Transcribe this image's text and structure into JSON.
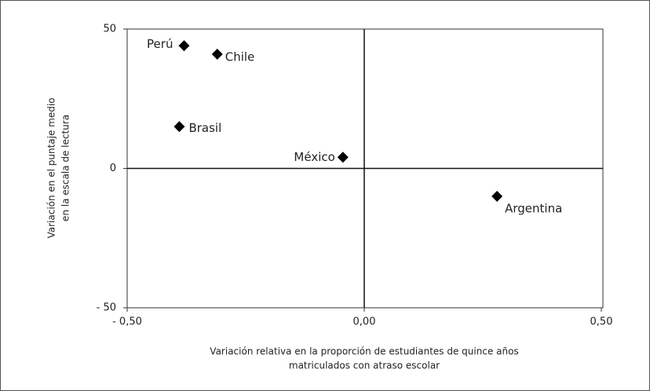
{
  "chart_data": {
    "type": "scatter",
    "x_label": [
      "Variación relativa en la proporción de estudiantes de quince años",
      "matriculados con atraso escolar"
    ],
    "y_label": [
      "Variación en el puntaje medio",
      "en la escala de lectura"
    ],
    "series": [
      {
        "name": null,
        "color": "#000000",
        "labels": [
          "Perú",
          "Chile",
          "Brasil",
          "México",
          "Argentina"
        ],
        "x": [
          -0.38,
          -0.31,
          -0.39,
          -0.045,
          0.28
        ],
        "values": [
          44,
          41,
          15,
          4,
          -10
        ]
      }
    ],
    "xlim": [
      -0.5,
      0.5
    ],
    "ylim": [
      -50,
      50
    ],
    "xticks": [
      {
        "value": -0.5,
        "label": "- 0,50"
      },
      {
        "value": 0,
        "label": "0,00"
      },
      {
        "value": 0.5,
        "label": "0,50"
      }
    ],
    "yticks": [
      {
        "value": -50,
        "label": "- 50"
      },
      0,
      50
    ]
  }
}
